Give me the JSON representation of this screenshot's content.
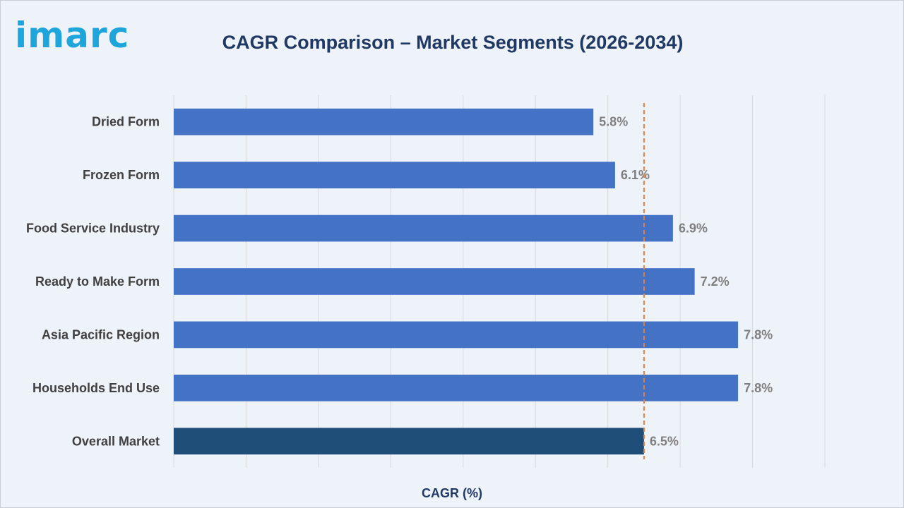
{
  "brand": {
    "logo_text": "imarc",
    "accent_color": "#1ea5dc"
  },
  "chart_data": {
    "type": "bar",
    "orientation": "horizontal",
    "title": "CAGR Comparison – Market Segments (2026-2034)",
    "xlabel": "CAGR (%)",
    "ylabel": "",
    "categories": [
      "Dried Form",
      "Frozen Form",
      "Food Service Industry",
      "Ready to Make Form",
      "Asia Pacific Region",
      "Households End Use",
      "Overall Market"
    ],
    "values": [
      5.8,
      6.1,
      6.9,
      7.2,
      7.8,
      7.8,
      6.5
    ],
    "value_labels": [
      "5.8%",
      "6.1%",
      "6.9%",
      "7.2%",
      "7.8%",
      "7.8%",
      "6.5%"
    ],
    "highlight_category": "Overall Market",
    "reference_line": {
      "value": 6.5,
      "style": "dashed",
      "color": "#ed7d31"
    },
    "xlim": [
      0,
      9
    ],
    "grid": "vertical",
    "colors": {
      "bar": "#4472c4",
      "highlight_bar": "#1f4e79"
    }
  }
}
